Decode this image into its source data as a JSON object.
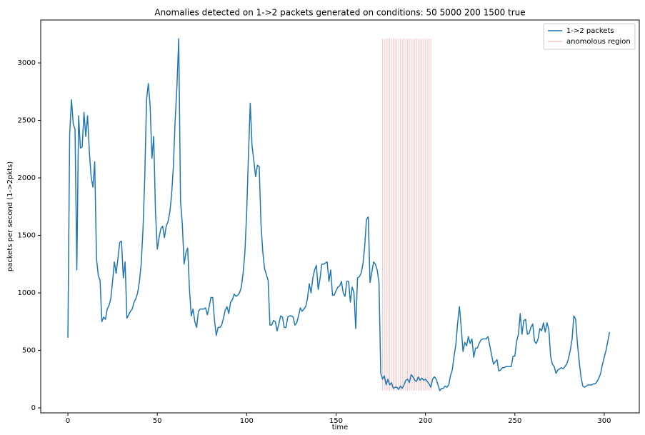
{
  "chart_data": {
    "type": "line",
    "title": "Anomalies detected on 1->2 packets generated on conditions: 50 5000 200 1500 true",
    "x_label": "time",
    "y_label": "packets per second (1->2pkts)",
    "xlim": [
      -15.2,
      319.6
    ],
    "xticks": [
      0,
      50,
      100,
      150,
      200,
      250,
      300
    ],
    "ylim": [
      -43,
      3373
    ],
    "yticks": [
      0,
      500,
      1000,
      1500,
      2000,
      2500,
      3000
    ],
    "legend": "upper right",
    "series": [
      {
        "name": "1->2 packets",
        "color": "#1f77b4",
        "values": [
          610,
          2380,
          2680,
          2470,
          2420,
          1200,
          2540,
          2260,
          2270,
          2570,
          2360,
          2540,
          2230,
          2010,
          1920,
          2140,
          1300,
          1150,
          1110,
          750,
          790,
          770,
          860,
          890,
          950,
          1100,
          1270,
          1170,
          1300,
          1440,
          1450,
          1130,
          1270,
          780,
          810,
          840,
          860,
          920,
          950,
          1000,
          1100,
          1250,
          1550,
          2000,
          2680,
          2820,
          2630,
          2170,
          2360,
          1700,
          1380,
          1480,
          1560,
          1580,
          1480,
          1580,
          1620,
          1700,
          1850,
          2100,
          2500,
          2800,
          3210,
          1800,
          1600,
          1250,
          1350,
          1390,
          1030,
          800,
          860,
          750,
          700,
          840,
          860,
          860,
          860,
          870,
          810,
          880,
          960,
          960,
          760,
          630,
          700,
          700,
          720,
          780,
          850,
          880,
          820,
          920,
          940,
          990,
          970,
          980,
          1000,
          1050,
          1170,
          1350,
          1700,
          2200,
          2650,
          2280,
          2150,
          2010,
          2110,
          2100,
          1600,
          1360,
          1210,
          1160,
          1110,
          720,
          720,
          760,
          750,
          670,
          730,
          800,
          790,
          700,
          700,
          790,
          800,
          800,
          790,
          720,
          740,
          800,
          870,
          840,
          860,
          880,
          950,
          1080,
          1000,
          1130,
          1200,
          1240,
          1030,
          1120,
          1250,
          1250,
          1260,
          1270,
          1100,
          1200,
          980,
          980,
          1020,
          1050,
          1060,
          1100,
          1000,
          970,
          1100,
          1100,
          920,
          1050,
          1000,
          690,
          1130,
          1140,
          1170,
          1250,
          1400,
          1640,
          1660,
          1090,
          1180,
          1270,
          1250,
          1200,
          1090,
          300,
          250,
          280,
          200,
          250,
          200,
          220,
          170,
          180,
          180,
          160,
          190,
          170,
          200,
          240,
          250,
          220,
          290,
          270,
          240,
          230,
          270,
          240,
          260,
          240,
          250,
          230,
          210,
          180,
          250,
          270,
          250,
          200,
          150,
          170,
          170,
          190,
          180,
          200,
          280,
          330,
          450,
          550,
          740,
          880,
          700,
          490,
          570,
          540,
          620,
          560,
          600,
          440,
          520,
          520,
          560,
          590,
          600,
          600,
          600,
          620,
          540,
          460,
          380,
          400,
          420,
          320,
          330,
          350,
          350,
          360,
          360,
          360,
          360,
          450,
          450,
          580,
          640,
          820,
          640,
          760,
          770,
          640,
          650,
          700,
          730,
          580,
          560,
          600,
          690,
          670,
          740,
          660,
          740,
          680,
          450,
          380,
          360,
          300,
          330,
          340,
          350,
          340,
          360,
          380,
          430,
          500,
          600,
          800,
          770,
          560,
          400,
          270,
          190,
          180,
          190,
          200,
          200,
          200,
          210,
          210,
          230,
          260,
          300,
          380,
          440,
          500,
          580,
          660
        ]
      }
    ],
    "anomaly": {
      "name": "anomolous region",
      "color": "#f4c6c6",
      "x": [
        176,
        177,
        178,
        179,
        180,
        181,
        182,
        183,
        184,
        185,
        186,
        187,
        188,
        189,
        190,
        191,
        192,
        193,
        194,
        195,
        196,
        197,
        198,
        199,
        200,
        201,
        202,
        203
      ],
      "ymin": 150,
      "ymax": 3210
    }
  }
}
